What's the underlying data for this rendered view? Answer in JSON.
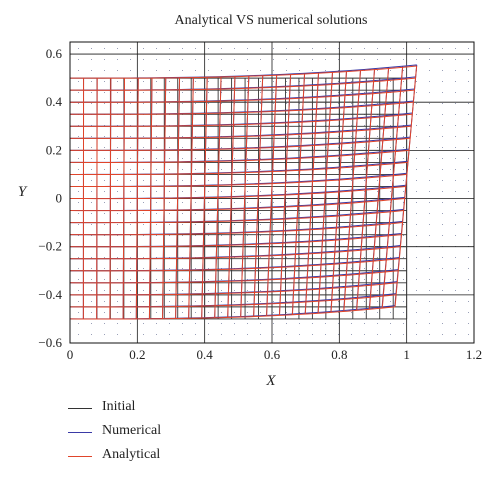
{
  "chart_data": {
    "type": "line",
    "title": "Analytical VS numerical solutions",
    "xlabel": "X",
    "ylabel": "Y",
    "xlim": [
      0,
      1.2
    ],
    "ylim": [
      -0.6,
      0.65
    ],
    "xticks": [
      "0",
      "0.2",
      "0.4",
      "0.6",
      "0.8",
      "1",
      "1.2"
    ],
    "yticks": [
      "0.6",
      "0.4",
      "0.2",
      "0",
      "−0.2",
      "−0.4",
      "−0.6"
    ],
    "grid": true,
    "legend_position": "bottom-left",
    "mesh": {
      "x_range": [
        0,
        1
      ],
      "y_range": [
        -0.5,
        0.5
      ],
      "columns": 26,
      "rows": 21,
      "right_edge_x_range": [
        0.965,
        1.03
      ],
      "top_right_y": 0.555,
      "bottom_right_y": -0.445
    },
    "series": [
      {
        "name": "Initial",
        "color": "#333333",
        "state": "undeformed grid"
      },
      {
        "name": "Numerical",
        "color": "#3a3aa6",
        "state": "deformed grid"
      },
      {
        "name": "Analytical",
        "color": "#e0452b",
        "state": "deformed grid"
      }
    ]
  },
  "legend": {
    "items": [
      {
        "label": "Initial",
        "color": "#333333"
      },
      {
        "label": "Numerical",
        "color": "#3a3aa6"
      },
      {
        "label": "Analytical",
        "color": "#e0452b"
      }
    ]
  }
}
